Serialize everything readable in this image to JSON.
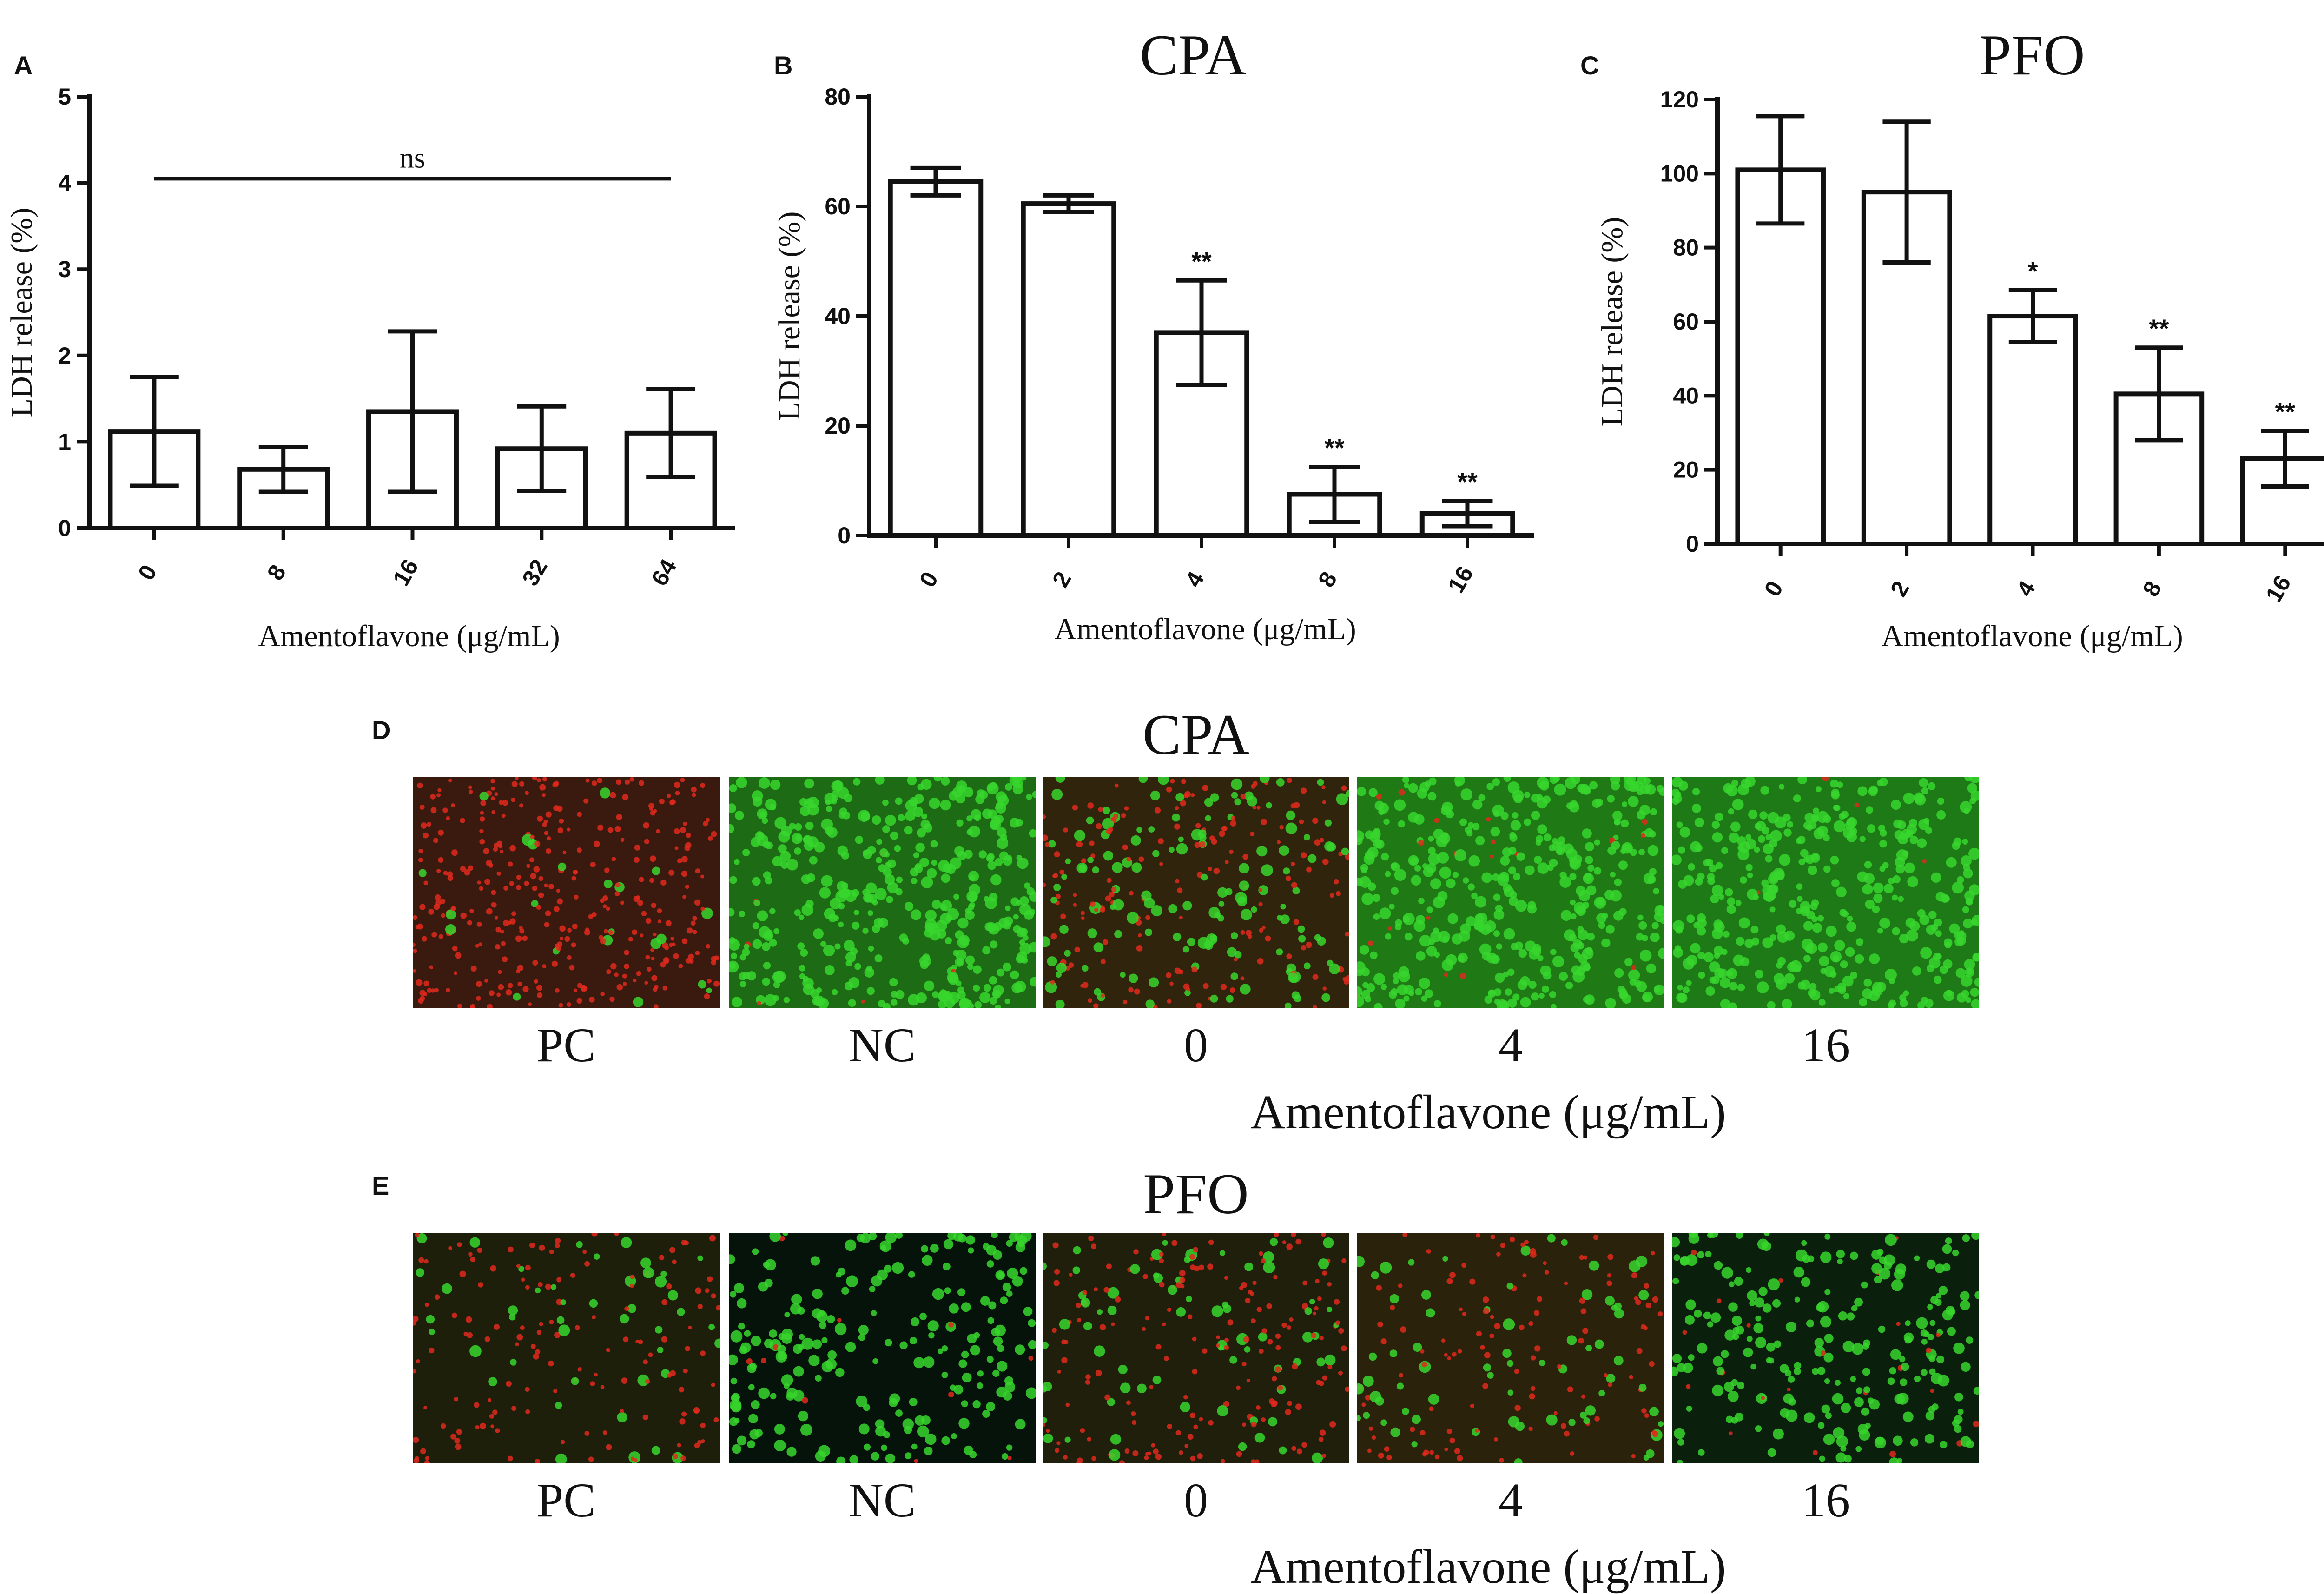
{
  "chart_data": [
    {
      "panel": "A",
      "type": "bar",
      "title": "",
      "xlabel": "Amentoflavone (μg/mL)",
      "ylabel": "LDH release (%)",
      "categories": [
        "0",
        "8",
        "16",
        "32",
        "64"
      ],
      "values": [
        1.12,
        0.68,
        1.35,
        0.92,
        1.1
      ],
      "errors": [
        0.63,
        0.26,
        0.93,
        0.49,
        0.51
      ],
      "significance": [
        "",
        "",
        "",
        "",
        ""
      ],
      "ylim": [
        0,
        5
      ],
      "yticks": [
        "0",
        "1",
        "2",
        "3",
        "4",
        "5"
      ],
      "bracket_label": "ns",
      "grid": false,
      "bar_color": "#ffffff",
      "stroke_color": "#111111"
    },
    {
      "panel": "B",
      "type": "bar",
      "title": "CPA",
      "xlabel": "Amentoflavone (μg/mL)",
      "ylabel": "LDH release (%)",
      "categories": [
        "0",
        "2",
        "4",
        "8",
        "16"
      ],
      "values": [
        64.5,
        60.5,
        37,
        7.5,
        4
      ],
      "errors": [
        2.5,
        1.5,
        9.5,
        5,
        2.3
      ],
      "significance": [
        "",
        "",
        "**",
        "**",
        "**"
      ],
      "ylim": [
        0,
        80
      ],
      "yticks": [
        "0",
        "20",
        "40",
        "60",
        "80"
      ],
      "grid": false,
      "bar_color": "#ffffff",
      "stroke_color": "#111111"
    },
    {
      "panel": "C",
      "type": "bar",
      "title": "PFO",
      "xlabel": "Amentoflavone (μg/mL)",
      "ylabel": "LDH release (%)",
      "categories": [
        "0",
        "2",
        "4",
        "8",
        "16"
      ],
      "values": [
        101,
        95,
        61.5,
        40.5,
        23
      ],
      "errors": [
        14.5,
        19,
        7,
        12.5,
        7.5
      ],
      "significance": [
        "",
        "",
        "*",
        "**",
        "**"
      ],
      "ylim": [
        0,
        120
      ],
      "yticks": [
        "0",
        "20",
        "40",
        "60",
        "80",
        "100",
        "120"
      ],
      "grid": false,
      "bar_color": "#ffffff",
      "stroke_color": "#111111"
    }
  ],
  "image_rows": [
    {
      "panel": "D",
      "title": "CPA",
      "xlabel": "Amentoflavone (μg/mL)",
      "labels": [
        "PC",
        "NC",
        "0",
        "4",
        "16"
      ],
      "red_fraction": [
        0.95,
        0.02,
        0.55,
        0.03,
        0.01
      ],
      "background": [
        "#3a1a0e",
        "#1d6b14",
        "#30240d",
        "#1f7a16",
        "#1e7a16"
      ],
      "cell_density": [
        0.9,
        1.0,
        0.75,
        1.0,
        0.95
      ]
    },
    {
      "panel": "E",
      "title": "PFO",
      "xlabel": "Amentoflavone (μg/mL)",
      "labels": [
        "PC",
        "NC",
        "0",
        "4",
        "16"
      ],
      "red_fraction": [
        0.75,
        0.03,
        0.65,
        0.55,
        0.08
      ],
      "background": [
        "#1e1f0b",
        "#05130a",
        "#1f1f0b",
        "#2a220a",
        "#0a200c"
      ],
      "cell_density": [
        0.45,
        0.55,
        0.6,
        0.45,
        0.6
      ]
    }
  ],
  "colors": {
    "live_cell": "#37d62d",
    "dead_cell": "#e0291c",
    "ink": "#111111"
  }
}
